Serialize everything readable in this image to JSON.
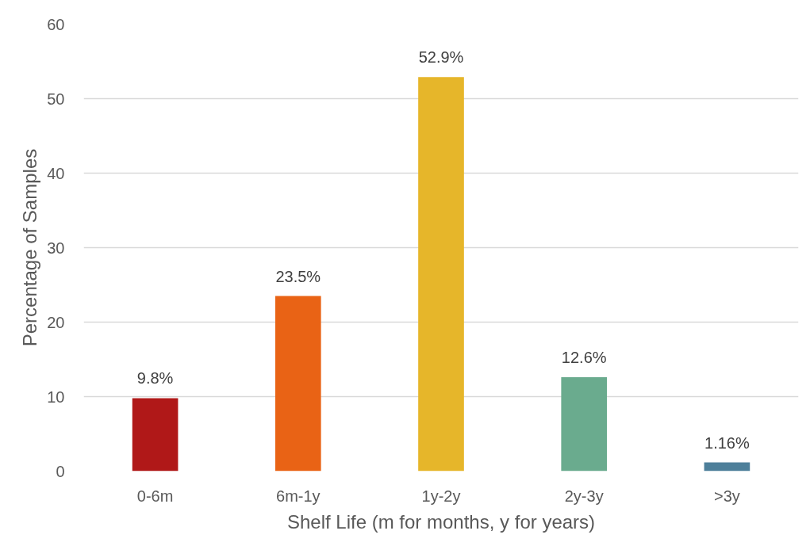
{
  "chart_data": {
    "type": "bar",
    "xlabel": "Shelf Life (m for months, y for years)",
    "ylabel": "Percentage of Samples",
    "categories": [
      "0-6m",
      "6m-1y",
      "1y-2y",
      "2y-3y",
      ">3y"
    ],
    "values": [
      9.8,
      23.5,
      52.9,
      12.6,
      1.16
    ],
    "colors": [
      "#b01818",
      "#e96315",
      "#e6b62a",
      "#6aab8e",
      "#4d7f9a"
    ],
    "value_labels": [
      "9.8%",
      "23.5%",
      "52.9%",
      "12.6%",
      "1.16%"
    ],
    "ylim": [
      0,
      60
    ],
    "yticks": [
      0,
      10,
      20,
      30,
      40,
      50,
      60
    ],
    "grid": "y"
  }
}
